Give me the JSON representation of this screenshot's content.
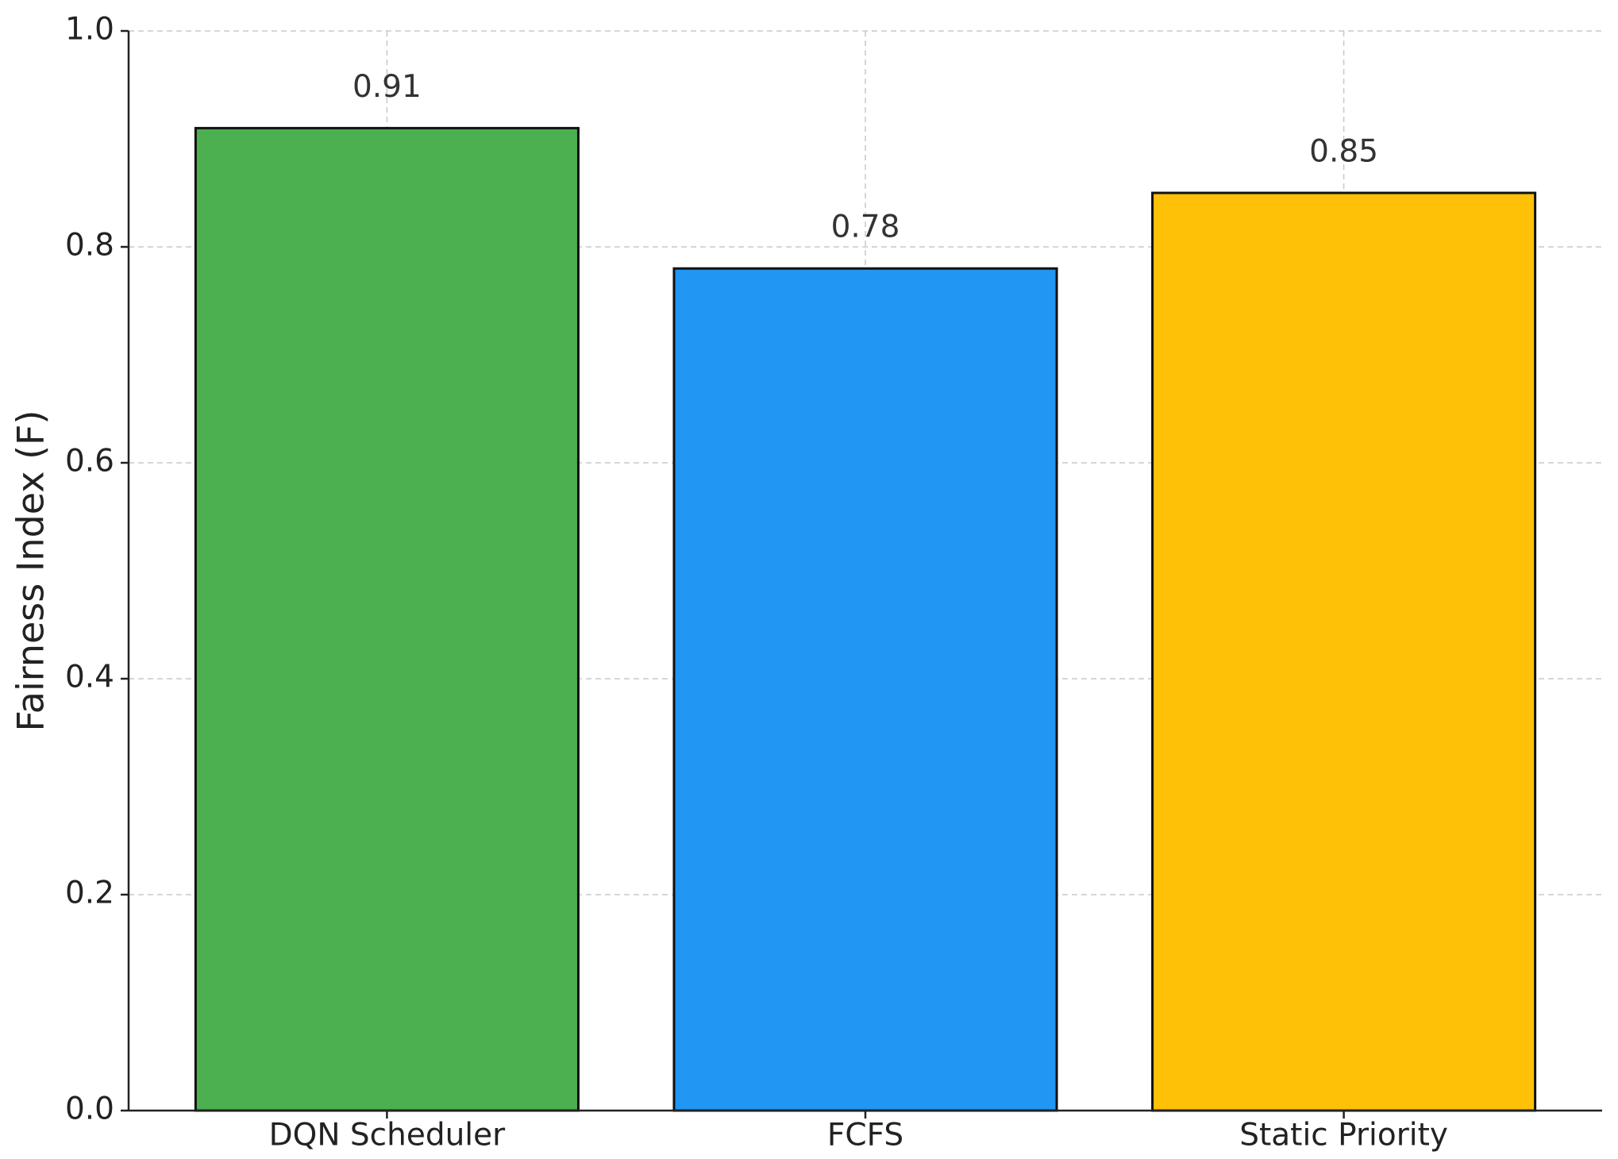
{
  "chart_data": {
    "type": "bar",
    "y_label": "Fairness Index (F)",
    "categories": [
      "DQN Scheduler",
      "FCFS",
      "Static Priority"
    ],
    "values": [
      0.91,
      0.78,
      0.85
    ],
    "colors": [
      "#4caf50",
      "#2196f3",
      "#ffc107"
    ],
    "ylim": [
      0,
      1
    ],
    "yticks": [
      {
        "value": 0,
        "label": "0.0"
      },
      0.2,
      0.4,
      0.6,
      0.8,
      {
        "value": 1,
        "label": "1.0"
      }
    ],
    "grid": true
  }
}
